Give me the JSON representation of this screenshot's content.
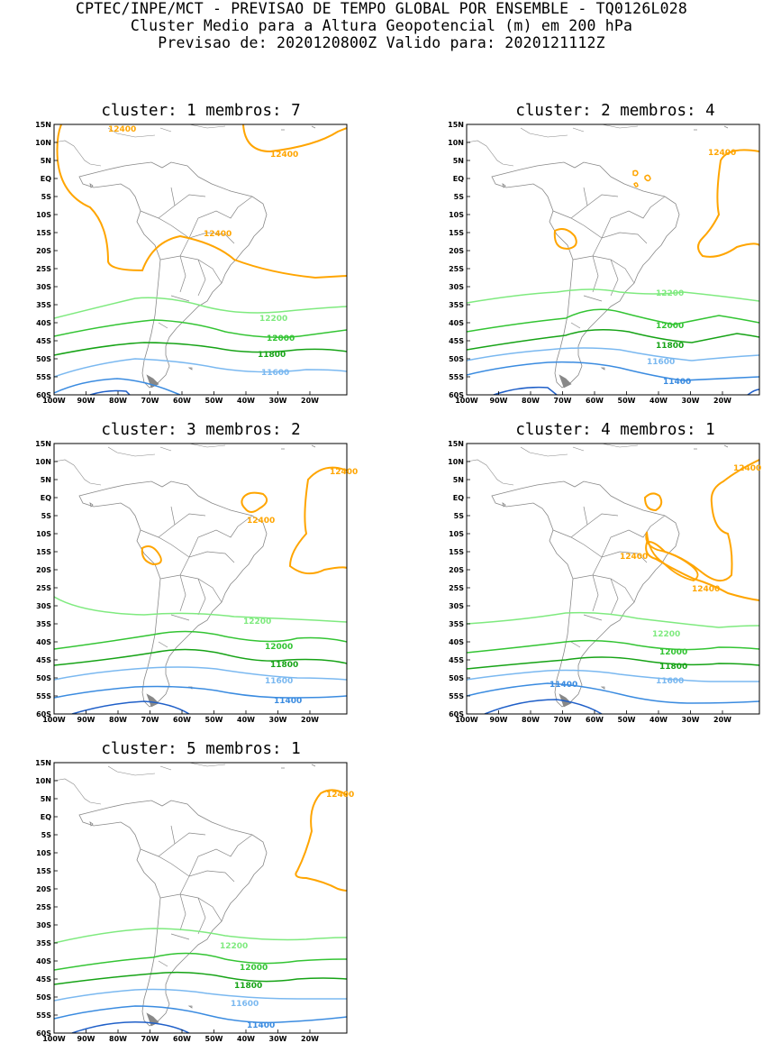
{
  "header": {
    "line1": "CPTEC/INPE/MCT - PREVISAO DE TEMPO GLOBAL POR ENSEMBLE - TQ0126L028",
    "line2": "Cluster Medio para a Altura Geopotencial (m) em 200 hPa",
    "line3": "Previsao de: 2020120800Z    Valido para: 2020121112Z"
  },
  "axes": {
    "lat_labels": [
      "15N",
      "10N",
      "5N",
      "EQ",
      "5S",
      "10S",
      "15S",
      "20S",
      "25S",
      "30S",
      "35S",
      "40S",
      "45S",
      "50S",
      "55S",
      "60S"
    ],
    "lon_labels": [
      "100W",
      "90W",
      "80W",
      "70W",
      "60W",
      "50W",
      "40W",
      "30W",
      "20W"
    ]
  },
  "colors": {
    "c12400": "#ffa500",
    "c12200": "#7fea7f",
    "c12000": "#33c433",
    "c11800": "#16a316",
    "c11600": "#7ab8f0",
    "c11400": "#3a8be0",
    "c11200": "#1f5fc8",
    "land": "#888888"
  },
  "panels": [
    {
      "title": "cluster: 1   membros: 7",
      "labels": [
        "12400",
        "12400",
        "12400",
        "12200",
        "12000",
        "11800",
        "11600"
      ]
    },
    {
      "title": "cluster: 2   membros: 4",
      "labels": [
        "12400",
        "12200",
        "12000",
        "11800",
        "11600",
        "11400"
      ]
    },
    {
      "title": "cluster: 3   membros: 2",
      "labels": [
        "12400",
        "12400",
        "12200",
        "12000",
        "11800",
        "11600",
        "11400"
      ]
    },
    {
      "title": "cluster: 4   membros: 1",
      "labels": [
        "12400",
        "12400",
        "12400",
        "12200",
        "12000",
        "11800",
        "11600",
        "11400"
      ]
    },
    {
      "title": "cluster: 5   membros: 1",
      "labels": [
        "12400",
        "12200",
        "12000",
        "11800",
        "11600",
        "11400"
      ]
    }
  ]
}
